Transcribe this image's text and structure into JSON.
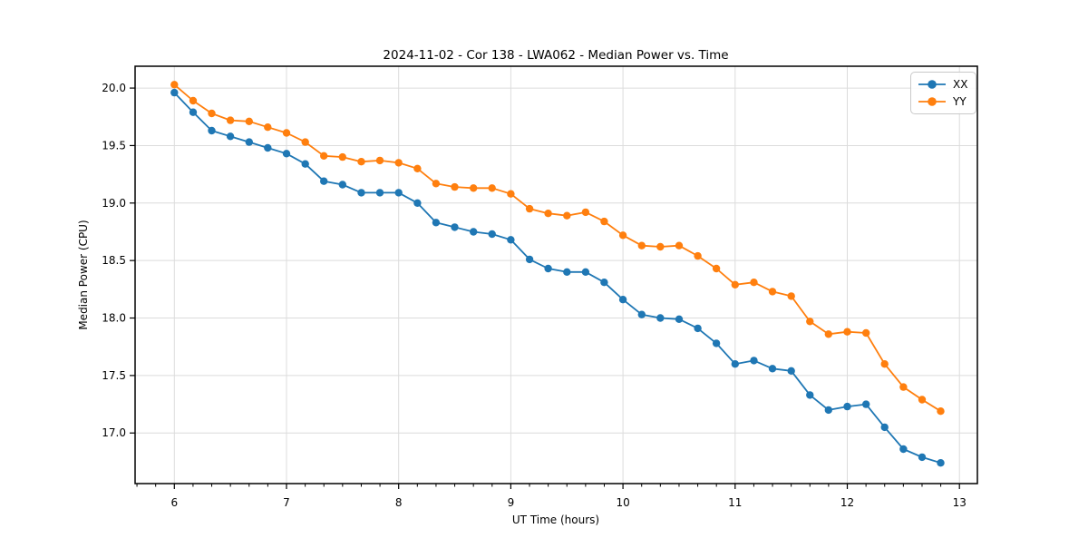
{
  "chart_data": {
    "type": "line",
    "title": "2024-11-02 - Cor 138 - LWA062 - Median Power vs. Time",
    "xlabel": "UT Time (hours)",
    "ylabel": "Median Power (CPU)",
    "xlim": [
      5.65,
      13.16
    ],
    "ylim": [
      16.56,
      20.19
    ],
    "xticks": [
      6,
      7,
      8,
      9,
      10,
      11,
      12,
      13
    ],
    "yticks": [
      17.0,
      17.5,
      18.0,
      18.5,
      19.0,
      19.5,
      20.0
    ],
    "x_minor_tick_step": 0.166667,
    "grid": "major",
    "grid_color": "#dcdcdc",
    "legend_position": "upper right",
    "x": [
      6.0,
      6.167,
      6.333,
      6.5,
      6.667,
      6.833,
      7.0,
      7.167,
      7.333,
      7.5,
      7.667,
      7.833,
      8.0,
      8.167,
      8.333,
      8.5,
      8.667,
      8.833,
      9.0,
      9.167,
      9.333,
      9.5,
      9.667,
      9.833,
      10.0,
      10.167,
      10.333,
      10.5,
      10.667,
      10.833,
      11.0,
      11.167,
      11.333,
      11.5,
      11.667,
      11.833,
      12.0,
      12.167,
      12.333,
      12.5,
      12.667,
      12.833
    ],
    "series": [
      {
        "name": "XX",
        "color": "#1f77b4",
        "values": [
          19.96,
          19.79,
          19.63,
          19.58,
          19.53,
          19.48,
          19.43,
          19.34,
          19.19,
          19.16,
          19.09,
          19.09,
          19.09,
          19.0,
          18.83,
          18.79,
          18.75,
          18.73,
          18.68,
          18.51,
          18.43,
          18.4,
          18.4,
          18.31,
          18.16,
          18.03,
          18.0,
          17.99,
          17.91,
          17.78,
          17.6,
          17.63,
          17.56,
          17.54,
          17.33,
          17.2,
          17.23,
          17.25,
          17.05,
          16.86,
          16.79,
          16.74
        ]
      },
      {
        "name": "YY",
        "color": "#ff7f0e",
        "values": [
          20.03,
          19.89,
          19.78,
          19.72,
          19.71,
          19.66,
          19.61,
          19.53,
          19.41,
          19.4,
          19.36,
          19.37,
          19.35,
          19.3,
          19.17,
          19.14,
          19.13,
          19.13,
          19.08,
          18.95,
          18.91,
          18.89,
          18.92,
          18.84,
          18.72,
          18.63,
          18.62,
          18.63,
          18.54,
          18.43,
          18.29,
          18.31,
          18.23,
          18.19,
          17.97,
          17.86,
          17.88,
          17.87,
          17.6,
          17.4,
          17.29,
          17.19
        ]
      }
    ]
  }
}
